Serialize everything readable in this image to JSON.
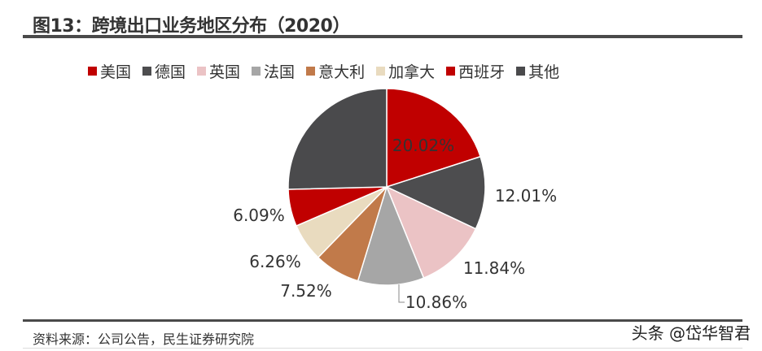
{
  "title": "图13：跨境出口业务地区分布（2020）",
  "source": "资料来源：公司公告，民生证券研究院",
  "watermark": "头条 @岱华智君",
  "chart_data": {
    "type": "pie",
    "title": "图13：跨境出口业务地区分布（2020）",
    "legend_position": "top",
    "start": "12 o'clock, clockwise",
    "slices": [
      {
        "name": "美国",
        "value": 20.02,
        "label": "20.02%",
        "color": "#C00000"
      },
      {
        "name": "德国",
        "value": 12.01,
        "label": "12.01%",
        "color": "#4D4D4F"
      },
      {
        "name": "英国",
        "value": 11.84,
        "label": "11.84%",
        "color": "#EBC3C5"
      },
      {
        "name": "法国",
        "value": 10.86,
        "label": "10.86%",
        "color": "#A6A6A6"
      },
      {
        "name": "意大利",
        "value": 7.52,
        "label": "7.52%",
        "color": "#C17A4A"
      },
      {
        "name": "加拿大",
        "value": 6.26,
        "label": "6.26%",
        "color": "#E9DBBF"
      },
      {
        "name": "西班牙",
        "value": 6.09,
        "label": "6.09%",
        "color": "#C00000"
      },
      {
        "name": "其他",
        "value": 25.4,
        "label": "",
        "color": "#4A4A4C"
      }
    ]
  }
}
